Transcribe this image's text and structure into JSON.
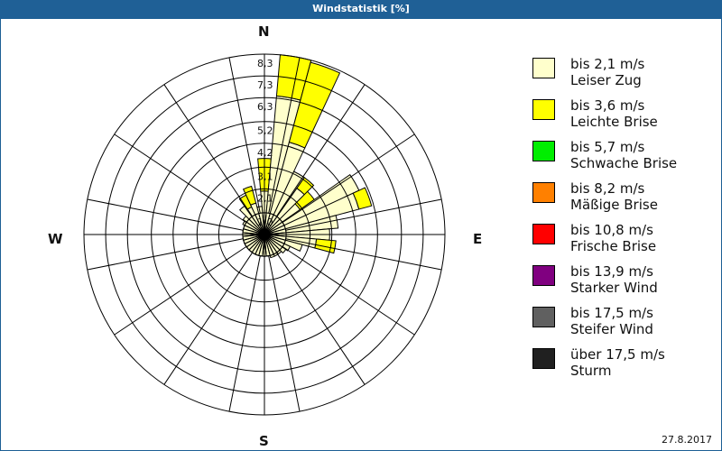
{
  "window": {
    "title": "Windstatistik [%]"
  },
  "compass": {
    "N": "N",
    "E": "E",
    "S": "S",
    "W": "W"
  },
  "date": "27.8.2017",
  "legend": [
    {
      "speed": "bis 2,1 m/s",
      "name": "Leiser Zug",
      "color": "#ffffcc"
    },
    {
      "speed": "bis 3,6 m/s",
      "name": "Leichte Brise",
      "color": "#ffff00"
    },
    {
      "speed": "bis 5,7 m/s",
      "name": "Schwache Brise",
      "color": "#00ee00"
    },
    {
      "speed": "bis 8,2 m/s",
      "name": "Mäßige Brise",
      "color": "#ff8000"
    },
    {
      "speed": "bis 10,8 m/s",
      "name": "Frische Brise",
      "color": "#ff0000"
    },
    {
      "speed": "bis 13,9 m/s",
      "name": "Starker Wind",
      "color": "#800080"
    },
    {
      "speed": "bis 17,5 m/s",
      "name": "Steifer Wind",
      "color": "#606060"
    },
    {
      "speed": "über 17,5 m/s",
      "name": "Sturm",
      "color": "#202020"
    }
  ],
  "chart_data": {
    "type": "polar-bar",
    "title": "Windstatistik [%]",
    "ring_labels": [
      "1,0",
      "2,1",
      "3,1",
      "4,2",
      "5,2",
      "6,3",
      "7,3",
      "8,3"
    ],
    "ring_values": [
      1.0,
      2.1,
      3.1,
      4.2,
      5.2,
      6.3,
      7.3,
      8.3
    ],
    "rmax": 8.3,
    "direction_step_deg": 10,
    "series_names": [
      "Leiser Zug",
      "Leichte Brise"
    ],
    "petals": [
      {
        "dir": 0,
        "values": [
          2.0,
          1.5
        ]
      },
      {
        "dir": 10,
        "values": [
          6.4,
          1.9
        ]
      },
      {
        "dir": 20,
        "values": [
          4.4,
          3.8
        ]
      },
      {
        "dir": 30,
        "values": [
          3.2,
          0
        ]
      },
      {
        "dir": 40,
        "values": [
          2.6,
          0.6
        ]
      },
      {
        "dir": 50,
        "values": [
          2.0,
          0.8
        ]
      },
      {
        "dir": 60,
        "values": [
          4.8,
          0
        ]
      },
      {
        "dir": 70,
        "values": [
          4.5,
          0.6
        ]
      },
      {
        "dir": 80,
        "values": [
          3.4,
          0
        ]
      },
      {
        "dir": 90,
        "values": [
          3.0,
          0
        ]
      },
      {
        "dir": 100,
        "values": [
          2.4,
          0.9
        ]
      },
      {
        "dir": 110,
        "values": [
          1.8,
          0
        ]
      },
      {
        "dir": 120,
        "values": [
          1.3,
          0
        ]
      },
      {
        "dir": 130,
        "values": [
          1.2,
          0
        ]
      },
      {
        "dir": 140,
        "values": [
          1.1,
          0
        ]
      },
      {
        "dir": 150,
        "values": [
          1.1,
          0
        ]
      },
      {
        "dir": 160,
        "values": [
          1.1,
          0
        ]
      },
      {
        "dir": 170,
        "values": [
          1.0,
          0
        ]
      },
      {
        "dir": 180,
        "values": [
          1.0,
          0
        ]
      },
      {
        "dir": 190,
        "values": [
          1.0,
          0
        ]
      },
      {
        "dir": 200,
        "values": [
          1.0,
          0
        ]
      },
      {
        "dir": 210,
        "values": [
          1.0,
          0
        ]
      },
      {
        "dir": 220,
        "values": [
          1.0,
          0
        ]
      },
      {
        "dir": 230,
        "values": [
          1.0,
          0
        ]
      },
      {
        "dir": 240,
        "values": [
          1.0,
          0
        ]
      },
      {
        "dir": 250,
        "values": [
          1.0,
          0
        ]
      },
      {
        "dir": 260,
        "values": [
          1.0,
          0
        ]
      },
      {
        "dir": 270,
        "values": [
          1.0,
          0
        ]
      },
      {
        "dir": 280,
        "values": [
          1.0,
          0
        ]
      },
      {
        "dir": 290,
        "values": [
          1.0,
          0
        ]
      },
      {
        "dir": 300,
        "values": [
          1.1,
          0
        ]
      },
      {
        "dir": 310,
        "values": [
          1.2,
          0
        ]
      },
      {
        "dir": 320,
        "values": [
          1.6,
          0
        ]
      },
      {
        "dir": 330,
        "values": [
          1.4,
          0.6
        ]
      },
      {
        "dir": 340,
        "values": [
          1.5,
          0.8
        ]
      },
      {
        "dir": 350,
        "values": [
          1.3,
          0
        ]
      }
    ]
  }
}
